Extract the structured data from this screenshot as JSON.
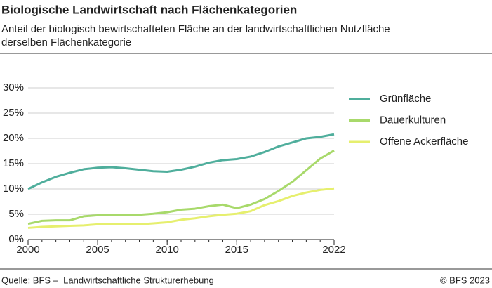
{
  "chart_data": {
    "type": "line",
    "title": "Biologische Landwirtschaft nach Flächenkategorien",
    "subtitle": [
      "Anteil der biologisch bewirtschafteten Fläche an der landwirtschaftlichen Nutzfläche",
      "derselben Flächenkategorie"
    ],
    "x": [
      2000,
      2001,
      2002,
      2003,
      2004,
      2005,
      2006,
      2007,
      2008,
      2009,
      2010,
      2011,
      2012,
      2013,
      2014,
      2015,
      2016,
      2017,
      2018,
      2019,
      2020,
      2021,
      2022
    ],
    "series": [
      {
        "name": "Grünfläche",
        "color": "#4fae9c",
        "values": [
          10.0,
          11.3,
          12.4,
          13.2,
          13.9,
          14.2,
          14.3,
          14.1,
          13.8,
          13.5,
          13.4,
          13.8,
          14.4,
          15.2,
          15.7,
          15.9,
          16.4,
          17.3,
          18.4,
          19.2,
          20.0,
          20.3,
          20.8
        ]
      },
      {
        "name": "Dauerkulturen",
        "color": "#a8d96b",
        "values": [
          3.1,
          3.7,
          3.8,
          3.8,
          4.6,
          4.8,
          4.8,
          4.9,
          4.9,
          5.1,
          5.4,
          5.9,
          6.1,
          6.6,
          6.9,
          6.2,
          6.9,
          8.0,
          9.6,
          11.4,
          13.7,
          16.0,
          17.6
        ]
      },
      {
        "name": "Offene Ackerfläche",
        "color": "#e6ef6e",
        "values": [
          2.3,
          2.5,
          2.6,
          2.7,
          2.8,
          3.0,
          3.0,
          3.0,
          3.0,
          3.2,
          3.4,
          3.9,
          4.2,
          4.6,
          4.9,
          5.1,
          5.6,
          6.8,
          7.6,
          8.6,
          9.3,
          9.8,
          10.1
        ]
      }
    ],
    "xlim": [
      2000,
      2022
    ],
    "xticks": [
      2000,
      2005,
      2010,
      2015,
      2022
    ],
    "ylim": [
      0,
      30
    ],
    "yticks": [
      {
        "value": 0,
        "label": "0%"
      },
      {
        "value": 5,
        "label": "5%"
      },
      {
        "value": 10,
        "label": "10%"
      },
      {
        "value": 15,
        "label": "15%"
      },
      {
        "value": 20,
        "label": "20%"
      },
      {
        "value": 25,
        "label": "25%"
      },
      {
        "value": 30,
        "label": "30%"
      }
    ],
    "grid": true,
    "legend": "right"
  },
  "footer": {
    "source": "Quelle: BFS –  Landwirtschaftliche Strukturerhebung",
    "copyright": "© BFS 2023"
  }
}
